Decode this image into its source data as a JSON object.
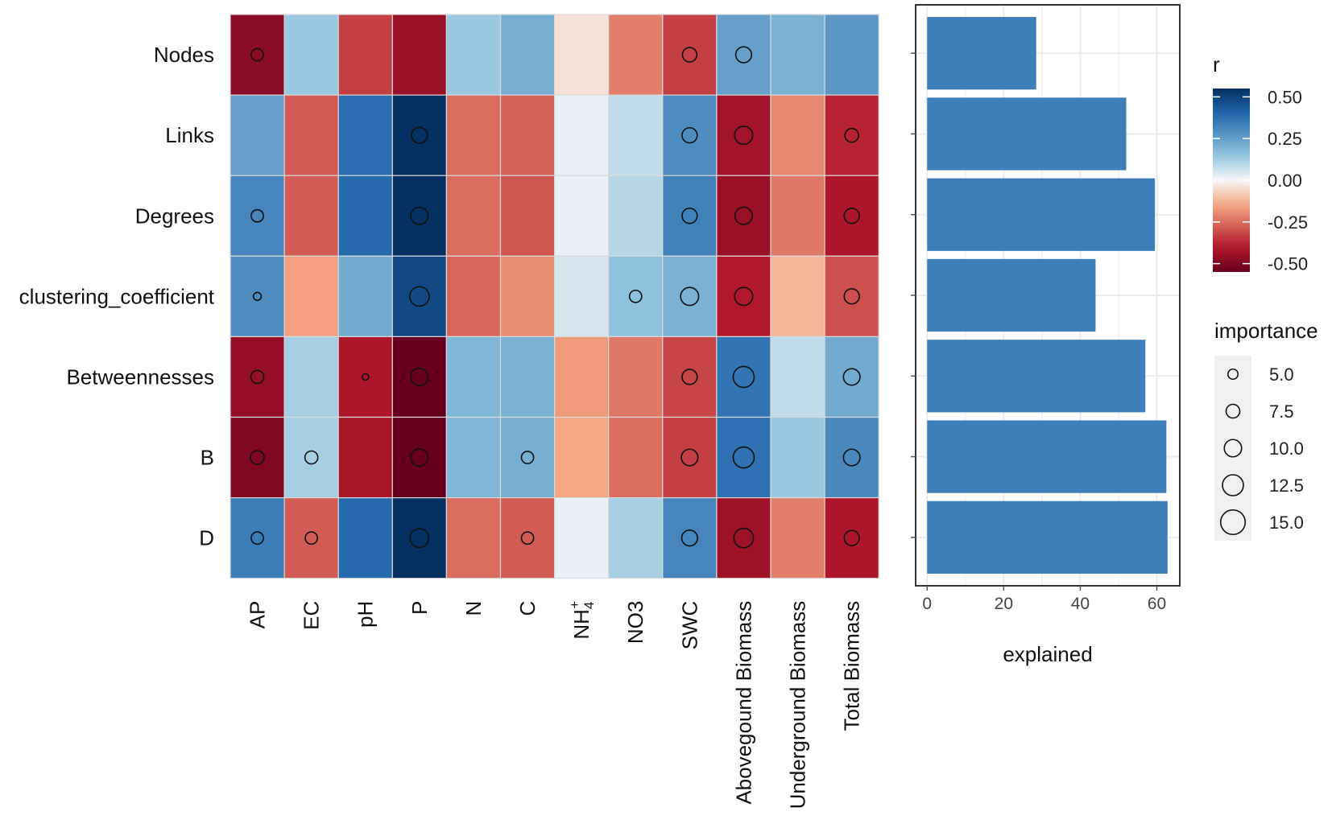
{
  "chart_data": [
    {
      "type": "heatmap",
      "title": "",
      "rows": [
        "Nodes",
        "Links",
        "Degrees",
        "clustering_coefficient",
        "Betweennesses",
        "B",
        "D"
      ],
      "columns": [
        "AP",
        "EC",
        "pH",
        "P",
        "N",
        "C",
        "NH4+",
        "NO3",
        "SWC",
        "Abovegound Biomass",
        "Underground Biomass",
        "Total Biomass"
      ],
      "column_label_parts": {
        "NH4+": {
          "base": "NH",
          "sub": "4",
          "sup": "+"
        }
      },
      "r_values": [
        [
          -0.48,
          0.14,
          -0.33,
          -0.45,
          0.14,
          0.21,
          -0.04,
          -0.22,
          -0.33,
          0.25,
          0.2,
          0.27
        ],
        [
          0.25,
          -0.28,
          0.38,
          0.55,
          -0.25,
          -0.27,
          0.02,
          0.08,
          0.3,
          -0.43,
          -0.2,
          -0.38
        ],
        [
          0.32,
          -0.28,
          0.39,
          0.55,
          -0.25,
          -0.29,
          0.02,
          0.1,
          0.33,
          -0.45,
          -0.23,
          -0.41
        ],
        [
          0.3,
          -0.16,
          0.22,
          0.48,
          -0.26,
          -0.19,
          0.05,
          0.16,
          0.2,
          -0.4,
          -0.12,
          -0.3
        ],
        [
          -0.46,
          0.12,
          -0.41,
          -0.58,
          0.19,
          0.2,
          -0.17,
          -0.23,
          -0.32,
          0.36,
          0.08,
          0.22
        ],
        [
          -0.5,
          0.12,
          -0.42,
          -0.6,
          0.19,
          0.21,
          -0.15,
          -0.25,
          -0.33,
          0.37,
          0.14,
          0.31
        ],
        [
          0.34,
          -0.28,
          0.39,
          0.58,
          -0.25,
          -0.28,
          0.02,
          0.12,
          0.32,
          -0.44,
          -0.22,
          -0.41
        ]
      ],
      "importance": [
        [
          6.5,
          null,
          null,
          null,
          null,
          null,
          null,
          null,
          8.0,
          9.0,
          null,
          null
        ],
        [
          null,
          null,
          null,
          9.0,
          null,
          null,
          null,
          null,
          8.5,
          10.5,
          null,
          7.5
        ],
        [
          6.5,
          null,
          null,
          10.0,
          null,
          null,
          null,
          null,
          8.5,
          10.0,
          null,
          8.5
        ],
        [
          3.5,
          null,
          null,
          11.5,
          null,
          null,
          null,
          6.5,
          10.5,
          10.5,
          null,
          8.5
        ],
        [
          7.0,
          null,
          2.5,
          10.0,
          null,
          null,
          null,
          null,
          8.5,
          12.5,
          null,
          9.5
        ],
        [
          7.5,
          7.0,
          null,
          10.0,
          null,
          6.5,
          null,
          null,
          9.5,
          12.5,
          null,
          9.5
        ],
        [
          6.5,
          6.5,
          null,
          11.0,
          null,
          6.5,
          null,
          null,
          9.0,
          11.5,
          null,
          8.5
        ]
      ]
    },
    {
      "type": "bar",
      "orientation": "horizontal",
      "categories": [
        "Nodes",
        "Links",
        "Degrees",
        "clustering_coefficient",
        "Betweennesses",
        "B",
        "D"
      ],
      "values": [
        28.5,
        52,
        59.5,
        44,
        57,
        62.5,
        62.8
      ],
      "xlabel": "explained",
      "xticks": [
        "0",
        "20",
        "40",
        "60"
      ],
      "xtick_values": [
        0,
        20,
        40,
        60
      ],
      "xlim": [
        -3,
        66
      ],
      "bar_color": "#3E7FB9"
    }
  ],
  "legend_r": {
    "title": "r",
    "labels": [
      "0.50",
      "0.25",
      "0.00",
      "-0.25",
      "-0.50"
    ],
    "label_values": [
      0.5,
      0.25,
      0.0,
      -0.25,
      -0.5
    ],
    "range": [
      -0.55,
      0.55
    ]
  },
  "legend_importance": {
    "title": "importance",
    "labels": [
      "5.0",
      "7.5",
      "10.0",
      "12.5",
      "15.0"
    ],
    "label_values": [
      5.0,
      7.5,
      10.0,
      12.5,
      15.0
    ]
  },
  "colors": {
    "deep_red": "#67001F",
    "red": "#B2182B",
    "light_red": "#F4A582",
    "white": "#F7F7F7",
    "light_blue": "#92C5DE",
    "blue": "#2166AC",
    "deep_blue": "#053061",
    "panel_border": "#333333",
    "grid": "#EBEBEB",
    "legend_key_bg": "#F0F0F0"
  }
}
